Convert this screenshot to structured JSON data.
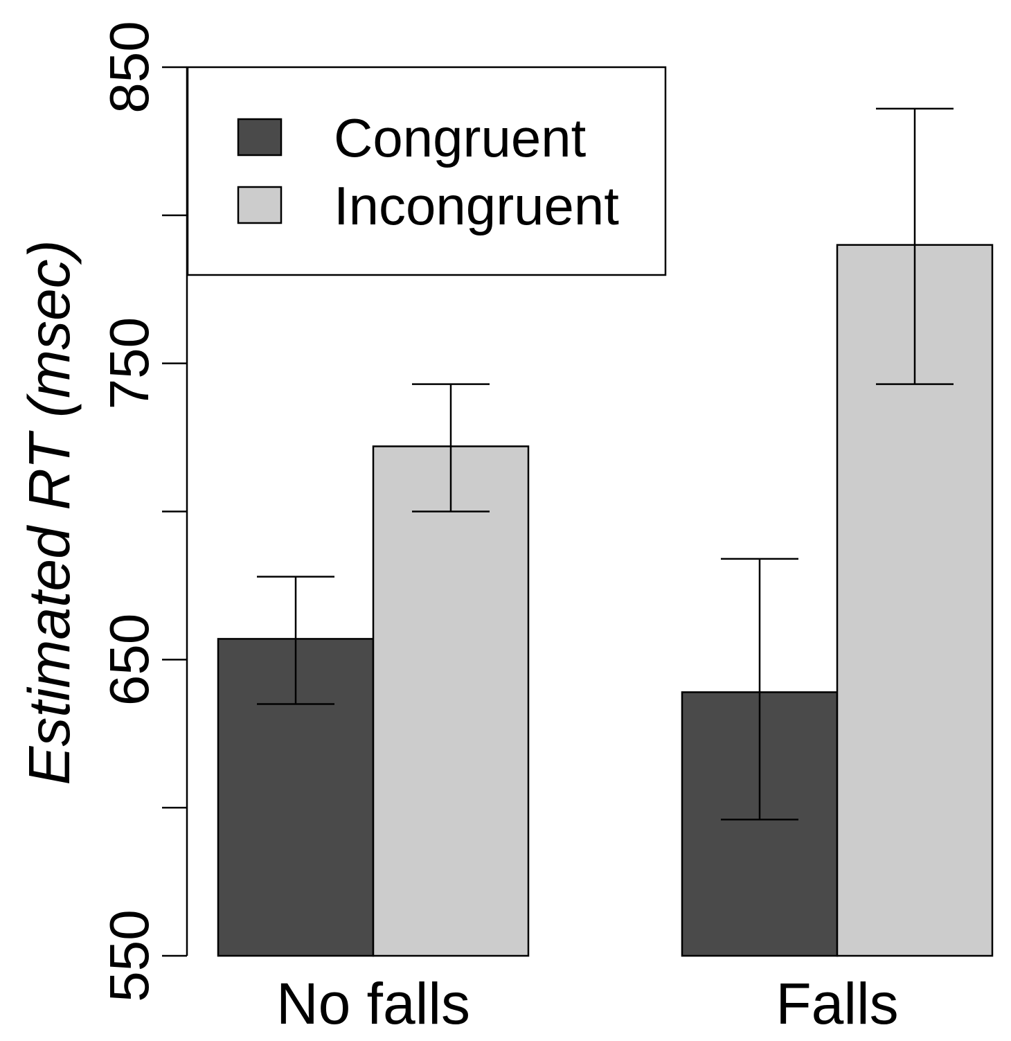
{
  "chart_data": {
    "type": "bar",
    "title": "",
    "xlabel": "",
    "ylabel_parts": [
      "Estimated",
      " RT",
      " (msec)"
    ],
    "categories": [
      "No falls",
      "Falls"
    ],
    "series": [
      {
        "name": "Congruent",
        "color": "#4a4a4a",
        "values": [
          657,
          639
        ],
        "error_low": [
          635,
          596
        ],
        "error_high": [
          678,
          684
        ]
      },
      {
        "name": "Incongruent",
        "color": "#cccccc",
        "values": [
          722,
          790
        ],
        "error_low": [
          700,
          743
        ],
        "error_high": [
          743,
          836
        ]
      }
    ],
    "ylim": [
      550,
      850
    ],
    "yticks": [
      550,
      600,
      650,
      700,
      750,
      800,
      850
    ],
    "ytick_labels": [
      "550",
      "650",
      "750",
      "850"
    ],
    "legend_position": "top-left",
    "grid": false
  }
}
